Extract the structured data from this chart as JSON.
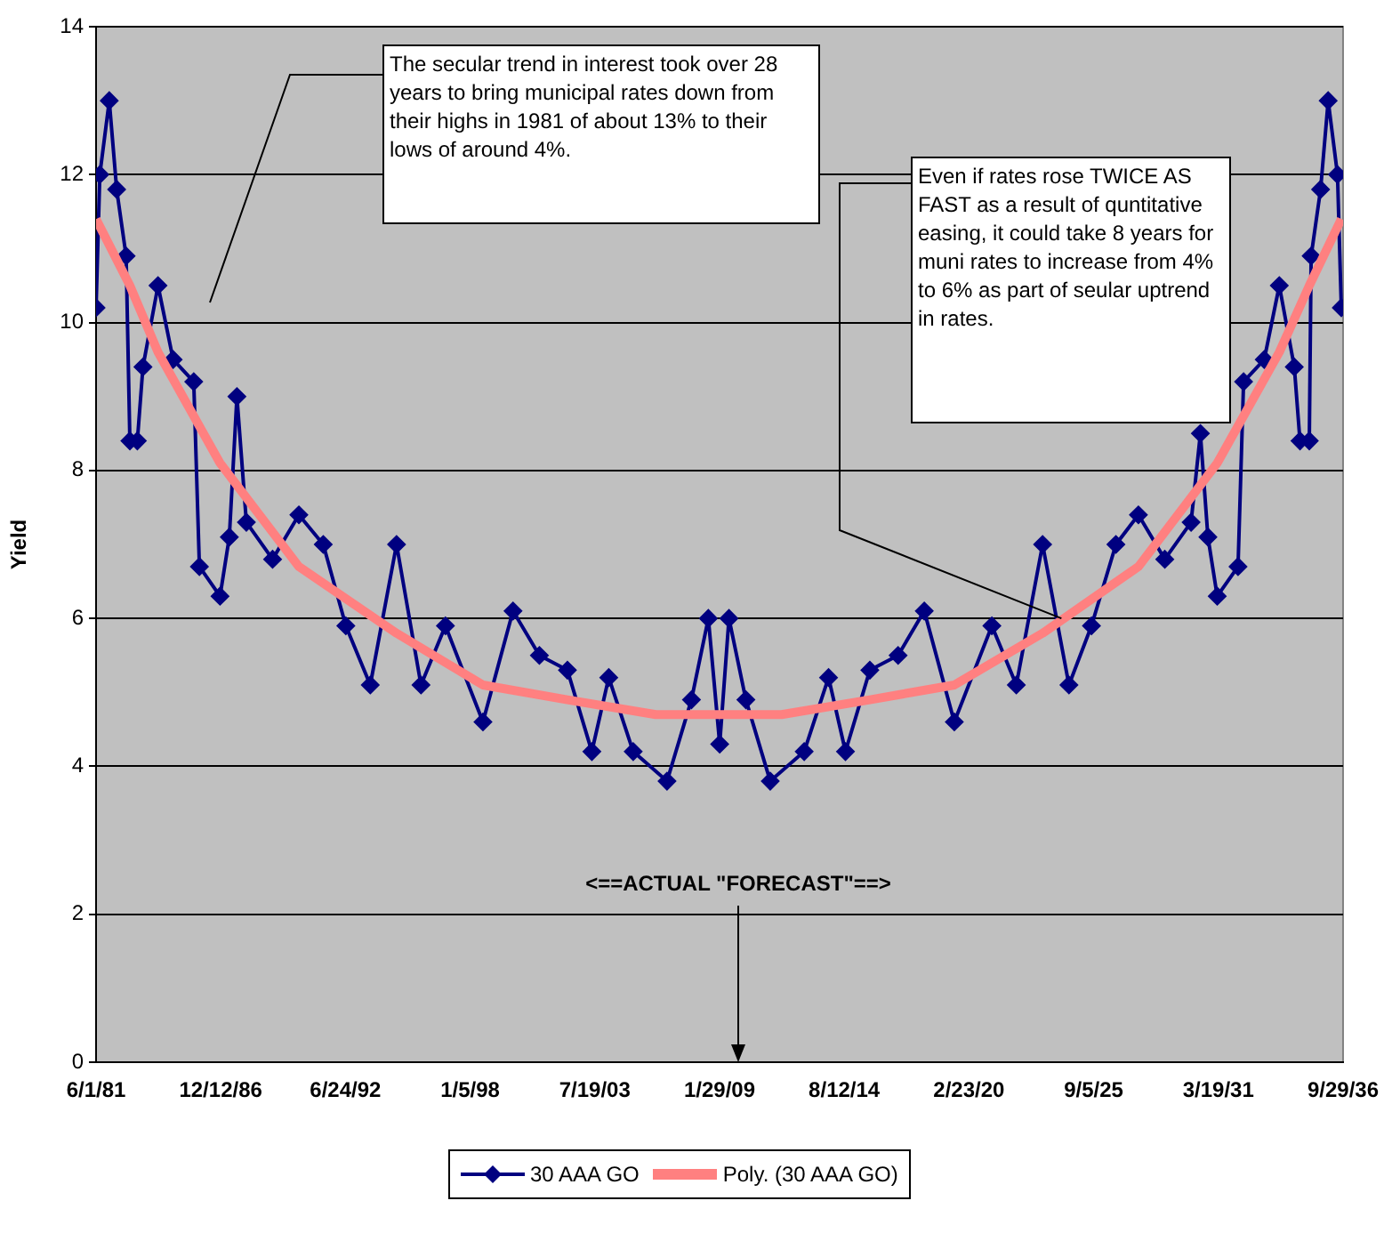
{
  "chart_data": {
    "type": "line",
    "ylabel": "Yield",
    "x": [
      "1981-06",
      "1981-08",
      "1982-01",
      "1982-05",
      "1982-10",
      "1982-12",
      "1983-04",
      "1983-07",
      "1984-03",
      "1984-11",
      "1985-10",
      "1986-01",
      "1986-12",
      "1987-05",
      "1987-09",
      "1988-02",
      "1989-04",
      "1990-06",
      "1991-07",
      "1992-07",
      "1993-08",
      "1994-10",
      "1995-11",
      "1996-12",
      "1998-08",
      "1999-12",
      "2001-02",
      "2002-05",
      "2003-06",
      "2004-03",
      "2005-04",
      "2006-10",
      "2007-11",
      "2008-08",
      "2009-02",
      "2009-07",
      "2010-04",
      "2011-05",
      "2012-11",
      "2013-12",
      "2014-09",
      "2015-10",
      "2017-01",
      "2018-03",
      "2019-07",
      "2021-03",
      "2022-04",
      "2023-06",
      "2024-08",
      "2025-08",
      "2026-09",
      "2027-09",
      "2028-11",
      "2030-01",
      "2030-06",
      "2030-10",
      "2031-03",
      "2032-02",
      "2032-05",
      "2033-04",
      "2033-12",
      "2034-08",
      "2034-11",
      "2035-04",
      "2035-05",
      "2035-10",
      "2036-02",
      "2036-07",
      "2036-09"
    ],
    "series": [
      {
        "name": "30 AAA GO",
        "color": "#000080",
        "marker": "diamond",
        "values": [
          10.2,
          12.0,
          13.0,
          11.8,
          10.9,
          8.4,
          8.4,
          9.4,
          10.5,
          9.5,
          9.2,
          6.7,
          6.3,
          7.1,
          9.0,
          7.3,
          6.8,
          7.4,
          7.0,
          5.9,
          5.1,
          7.0,
          5.1,
          5.9,
          4.6,
          6.1,
          5.5,
          5.3,
          4.2,
          5.2,
          4.2,
          3.8,
          4.9,
          6.0,
          4.3,
          6.0,
          4.9,
          3.8,
          4.2,
          5.2,
          4.2,
          5.3,
          5.5,
          6.1,
          4.6,
          5.9,
          5.1,
          7.0,
          5.1,
          5.9,
          7.0,
          7.4,
          6.8,
          7.3,
          8.5,
          7.1,
          6.3,
          6.7,
          9.2,
          9.5,
          10.5,
          9.4,
          8.4,
          8.4,
          10.9,
          11.8,
          13.0,
          12.0,
          10.2
        ]
      },
      {
        "name": "Poly. (30 AAA GO)",
        "color": "#ff8080",
        "marker": "none",
        "x": [
          "1981-06",
          "1982-12",
          "1984-03",
          "1986-12",
          "1990-06",
          "1994-10",
          "1998-08",
          "2002-05",
          "2006-04",
          "2009-02",
          "2011-11",
          "2015-10",
          "2019-07",
          "2023-06",
          "2027-09",
          "2031-03",
          "2033-12",
          "2035-04",
          "2036-09"
        ],
        "values": [
          11.4,
          10.5,
          9.6,
          8.1,
          6.7,
          5.8,
          5.1,
          4.9,
          4.7,
          4.7,
          4.7,
          4.9,
          5.1,
          5.8,
          6.7,
          8.1,
          9.6,
          10.5,
          11.4
        ]
      }
    ],
    "xlim": [
      "1981-06-01",
      "2036-09-29"
    ],
    "xticks": [
      {
        "value": "1981-06-01",
        "label": "6/1/81"
      },
      {
        "value": "1986-12-12",
        "label": "12/12/86"
      },
      {
        "value": "1992-06-24",
        "label": "6/24/92"
      },
      {
        "value": "1998-01-05",
        "label": "1/5/98"
      },
      {
        "value": "2003-07-19",
        "label": "7/19/03"
      },
      {
        "value": "2009-01-29",
        "label": "1/29/09"
      },
      {
        "value": "2014-08-12",
        "label": "8/12/14"
      },
      {
        "value": "2020-02-23",
        "label": "2/23/20"
      },
      {
        "value": "2025-09-05",
        "label": "9/5/25"
      },
      {
        "value": "2031-03-19",
        "label": "3/19/31"
      },
      {
        "value": "2036-09-29",
        "label": "9/29/36"
      }
    ],
    "ylim": [
      0,
      14
    ],
    "yticks": [
      0,
      2,
      4,
      6,
      8,
      10,
      12,
      14
    ],
    "grid": "y",
    "legend": "bottom",
    "annotations": [
      "The secular trend in interest took over 28 years to bring municipal rates down  from their highs in 1981 of about 13% to their lows of around 4%.",
      {
        "text": "Even if rates rose TWICE AS FAST as a result of  quntitative easing, it could take 8 years for muni rates to increase from 4% to 6% as part of seular uptrend in rates.",
        "x": "2024-04",
        "y": 6.0
      },
      "<==ACTUAL \"FORECAST\"==>"
    ]
  }
}
